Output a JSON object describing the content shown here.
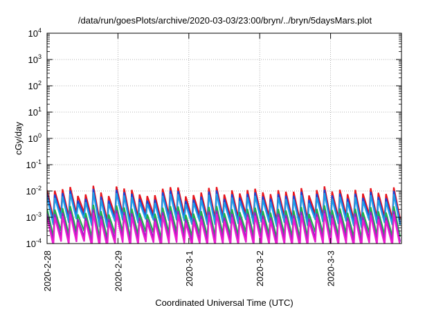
{
  "chart_data": {
    "type": "line",
    "title": "/data/run/goesPlots/archive/2020-03-03/23:00/bryn/../bryn/5daysMars.plot",
    "xlabel": "Coordinated Universal Time (UTC)",
    "ylabel": "cGy/day",
    "y_scale": "log",
    "ylim": [
      0.0001,
      10000
    ],
    "y_ticks": [
      {
        "base": "10",
        "exp": "4"
      },
      {
        "base": "10",
        "exp": "3"
      },
      {
        "base": "10",
        "exp": "2"
      },
      {
        "base": "10",
        "exp": "1"
      },
      {
        "base": "10",
        "exp": "0"
      },
      {
        "base": "10",
        "exp": "-1"
      },
      {
        "base": "10",
        "exp": "-2"
      },
      {
        "base": "10",
        "exp": "-3"
      },
      {
        "base": "10",
        "exp": "-4"
      }
    ],
    "x_range_days": [
      "2020-2-28",
      "2020-3-3"
    ],
    "x_ticks": [
      "2020-2-28",
      "2020-2-29",
      "2020-3-1",
      "2020-3-2",
      "2020-3-3"
    ],
    "grid": true,
    "pattern": "sawtooth",
    "series": [
      {
        "color": "#e8141c",
        "peak_range": [
          0.006,
          0.016
        ],
        "trough_range": [
          0.0007,
          0.0015
        ]
      },
      {
        "color": "#1a44d6",
        "peak_range": [
          0.004,
          0.012
        ],
        "trough_range": [
          0.0005,
          0.0011
        ]
      },
      {
        "color": "#1f9fe8",
        "peak_range": [
          0.003,
          0.009
        ],
        "trough_range": [
          0.0004,
          0.0009
        ]
      },
      {
        "color": "#1fb14a",
        "peak_range": [
          0.0012,
          0.003
        ],
        "trough_range": [
          0.00015,
          0.0003
        ]
      },
      {
        "color": "#9a1fc4",
        "peak_range": [
          0.0008,
          0.002
        ],
        "trough_range": [
          0.0001,
          0.00018
        ]
      },
      {
        "color": "#ec1ccf",
        "peak_range": [
          0.0006,
          0.0015
        ],
        "trough_range": [
          7e-05,
          0.00012
        ]
      }
    ]
  }
}
